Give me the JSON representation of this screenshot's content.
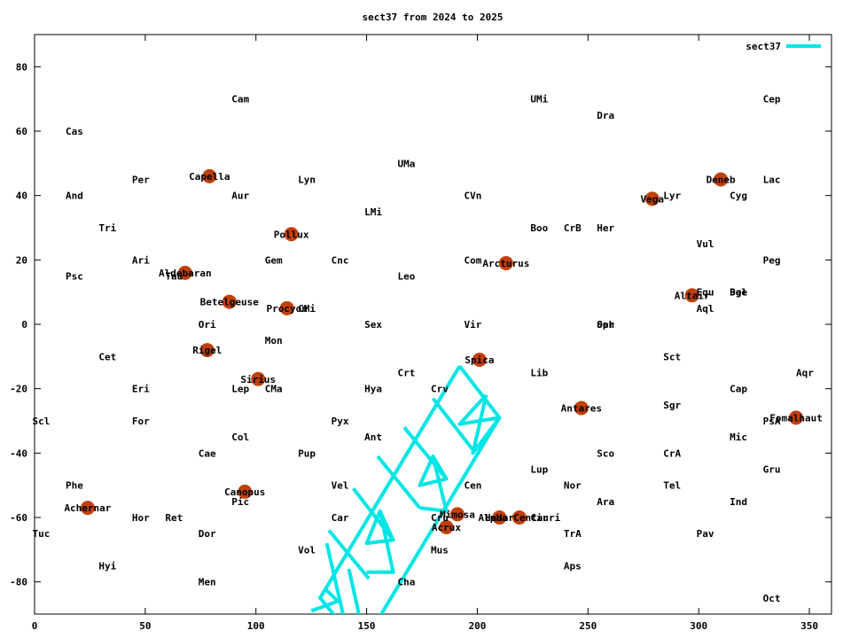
{
  "chart_data": {
    "type": "scatter",
    "title": "sect37 from 2024 to 2025",
    "xlabel": "",
    "ylabel": "",
    "xlim": [
      0,
      360
    ],
    "ylim": [
      -90,
      90
    ],
    "xticks": [
      0,
      50,
      100,
      150,
      200,
      250,
      300,
      350
    ],
    "yticks": [
      -80,
      -60,
      -40,
      -20,
      0,
      20,
      40,
      60,
      80
    ],
    "grid": false,
    "legend": {
      "position": "top-right",
      "entries": [
        {
          "name": "sect37",
          "color": "#00e5e5"
        }
      ]
    },
    "colors": {
      "star": "#c0400a",
      "sector": "#00e5e5",
      "axis": "#000000"
    },
    "constellations": [
      {
        "name": "Cam",
        "x": 89,
        "y": 70
      },
      {
        "name": "UMi",
        "x": 224,
        "y": 70
      },
      {
        "name": "Cep",
        "x": 329,
        "y": 70
      },
      {
        "name": "Dra",
        "x": 254,
        "y": 65
      },
      {
        "name": "Cas",
        "x": 14,
        "y": 60
      },
      {
        "name": "UMa",
        "x": 164,
        "y": 50
      },
      {
        "name": "Per",
        "x": 44,
        "y": 45
      },
      {
        "name": "Lyn",
        "x": 119,
        "y": 45
      },
      {
        "name": "Lac",
        "x": 329,
        "y": 45
      },
      {
        "name": "And",
        "x": 14,
        "y": 40
      },
      {
        "name": "Aur",
        "x": 89,
        "y": 40
      },
      {
        "name": "CVn",
        "x": 194,
        "y": 40
      },
      {
        "name": "Lyr",
        "x": 284,
        "y": 40
      },
      {
        "name": "Cyg",
        "x": 314,
        "y": 40
      },
      {
        "name": "LMi",
        "x": 149,
        "y": 35
      },
      {
        "name": "Tri",
        "x": 29,
        "y": 30
      },
      {
        "name": "Boo",
        "x": 224,
        "y": 30
      },
      {
        "name": "CrB",
        "x": 239,
        "y": 30
      },
      {
        "name": "Her",
        "x": 254,
        "y": 30
      },
      {
        "name": "Vul",
        "x": 299,
        "y": 25
      },
      {
        "name": "Ari",
        "x": 44,
        "y": 20
      },
      {
        "name": "Gem",
        "x": 104,
        "y": 20
      },
      {
        "name": "Cnc",
        "x": 134,
        "y": 20
      },
      {
        "name": "Com",
        "x": 194,
        "y": 20
      },
      {
        "name": "Peg",
        "x": 329,
        "y": 20
      },
      {
        "name": "Psc",
        "x": 14,
        "y": 15
      },
      {
        "name": "Tau",
        "x": 59,
        "y": 15
      },
      {
        "name": "Leo",
        "x": 164,
        "y": 15
      },
      {
        "name": "Sge",
        "x": 314,
        "y": 10
      },
      {
        "name": "Del",
        "x": 314,
        "y": 10
      },
      {
        "name": "Equ",
        "x": 299,
        "y": 10
      },
      {
        "name": "CMi",
        "x": 119,
        "y": 5
      },
      {
        "name": "Aql",
        "x": 299,
        "y": 5
      },
      {
        "name": "Ori",
        "x": 74,
        "y": 0
      },
      {
        "name": "Sex",
        "x": 149,
        "y": 0
      },
      {
        "name": "Vir",
        "x": 194,
        "y": 0
      },
      {
        "name": "Oph",
        "x": 254,
        "y": 0
      },
      {
        "name": "Ser",
        "x": 254,
        "y": 0
      },
      {
        "name": "Mon",
        "x": 104,
        "y": -5
      },
      {
        "name": "Cet",
        "x": 29,
        "y": -10
      },
      {
        "name": "Sct",
        "x": 284,
        "y": -10
      },
      {
        "name": "Crt",
        "x": 164,
        "y": -15
      },
      {
        "name": "Lib",
        "x": 224,
        "y": -15
      },
      {
        "name": "Aqr",
        "x": 344,
        "y": -15
      },
      {
        "name": "Eri",
        "x": 44,
        "y": -20
      },
      {
        "name": "Lep",
        "x": 89,
        "y": -20
      },
      {
        "name": "CMa",
        "x": 104,
        "y": -20
      },
      {
        "name": "Hya",
        "x": 149,
        "y": -20
      },
      {
        "name": "Crv",
        "x": 179,
        "y": -20
      },
      {
        "name": "Cap",
        "x": 314,
        "y": -20
      },
      {
        "name": "Sgr",
        "x": 284,
        "y": -25
      },
      {
        "name": "Scl",
        "x": -1,
        "y": -30
      },
      {
        "name": "For",
        "x": 44,
        "y": -30
      },
      {
        "name": "Pyx",
        "x": 134,
        "y": -30
      },
      {
        "name": "PsA",
        "x": 329,
        "y": -30
      },
      {
        "name": "Col",
        "x": 89,
        "y": -35
      },
      {
        "name": "Ant",
        "x": 149,
        "y": -35
      },
      {
        "name": "Mic",
        "x": 314,
        "y": -35
      },
      {
        "name": "Cae",
        "x": 74,
        "y": -40
      },
      {
        "name": "Pup",
        "x": 119,
        "y": -40
      },
      {
        "name": "Sco",
        "x": 254,
        "y": -40
      },
      {
        "name": "CrA",
        "x": 284,
        "y": -40
      },
      {
        "name": "Lup",
        "x": 224,
        "y": -45
      },
      {
        "name": "Gru",
        "x": 329,
        "y": -45
      },
      {
        "name": "Phe",
        "x": 14,
        "y": -50
      },
      {
        "name": "Vel",
        "x": 134,
        "y": -50
      },
      {
        "name": "Cen",
        "x": 194,
        "y": -50
      },
      {
        "name": "Nor",
        "x": 239,
        "y": -50
      },
      {
        "name": "Tel",
        "x": 284,
        "y": -50
      },
      {
        "name": "Pic",
        "x": 89,
        "y": -55
      },
      {
        "name": "Ara",
        "x": 254,
        "y": -55
      },
      {
        "name": "Ind",
        "x": 314,
        "y": -55
      },
      {
        "name": "Hor",
        "x": 44,
        "y": -60
      },
      {
        "name": "Ret",
        "x": 59,
        "y": -60
      },
      {
        "name": "Car",
        "x": 134,
        "y": -60
      },
      {
        "name": "Cru",
        "x": 179,
        "y": -60
      },
      {
        "name": "Cir",
        "x": 224,
        "y": -60
      },
      {
        "name": "Tuc",
        "x": -1,
        "y": -65
      },
      {
        "name": "Dor",
        "x": 74,
        "y": -65
      },
      {
        "name": "TrA",
        "x": 239,
        "y": -65
      },
      {
        "name": "Pav",
        "x": 299,
        "y": -65
      },
      {
        "name": "Vol",
        "x": 119,
        "y": -70
      },
      {
        "name": "Mus",
        "x": 179,
        "y": -70
      },
      {
        "name": "Hyi",
        "x": 29,
        "y": -75
      },
      {
        "name": "Aps",
        "x": 239,
        "y": -75
      },
      {
        "name": "Men",
        "x": 74,
        "y": -80
      },
      {
        "name": "Cha",
        "x": 164,
        "y": -80
      },
      {
        "name": "Oct",
        "x": 329,
        "y": -85
      }
    ],
    "stars": [
      {
        "name": "Capella",
        "x": 79,
        "y": 46
      },
      {
        "name": "Deneb",
        "x": 310,
        "y": 45
      },
      {
        "name": "Vega",
        "x": 279,
        "y": 39
      },
      {
        "name": "Pollux",
        "x": 116,
        "y": 28
      },
      {
        "name": "Arcturus",
        "x": 213,
        "y": 19
      },
      {
        "name": "Aldebaran",
        "x": 68,
        "y": 16
      },
      {
        "name": "Altair",
        "x": 297,
        "y": 9
      },
      {
        "name": "Betelgeuse",
        "x": 88,
        "y": 7
      },
      {
        "name": "Procyon",
        "x": 114,
        "y": 5
      },
      {
        "name": "Rigel",
        "x": 78,
        "y": -8
      },
      {
        "name": "Spica",
        "x": 201,
        "y": -11
      },
      {
        "name": "Sirius",
        "x": 101,
        "y": -17
      },
      {
        "name": "Antares",
        "x": 247,
        "y": -26
      },
      {
        "name": "Fomalhaut",
        "x": 344,
        "y": -29
      },
      {
        "name": "Canopus",
        "x": 95,
        "y": -52
      },
      {
        "name": "Achernar",
        "x": 24,
        "y": -57
      },
      {
        "name": "Mimosa",
        "x": 191,
        "y": -59
      },
      {
        "name": "Hadar",
        "x": 210,
        "y": -60
      },
      {
        "name": "Alpha Centauri",
        "x": 219,
        "y": -60
      },
      {
        "name": "Acrux",
        "x": 186,
        "y": -63
      }
    ],
    "series": [
      {
        "name": "sect37",
        "segments": [
          [
            [
              192,
              -13
            ],
            [
              210,
              -29
            ]
          ],
          [
            [
              192,
              -13
            ],
            [
              129,
              -85
            ],
            [
              141,
              -95
            ]
          ],
          [
            [
              210,
              -29
            ],
            [
              147,
              -101
            ]
          ],
          [
            [
              180,
              -23
            ],
            [
              198,
              -39
            ]
          ],
          [
            [
              167,
              -32
            ],
            [
              186,
              -48
            ]
          ],
          [
            [
              155,
              -41
            ],
            [
              174,
              -57
            ]
          ],
          [
            [
              144,
              -51
            ],
            [
              162,
              -67
            ]
          ],
          [
            [
              133,
              -64
            ],
            [
              151,
              -79
            ]
          ],
          [
            [
              132,
              -68
            ],
            [
              141,
              -95
            ]
          ],
          [
            [
              142,
              -76
            ],
            [
              151,
              -104
            ]
          ],
          [
            [
              204,
              -22
            ],
            [
              198,
              -40
            ],
            [
              210,
              -29
            ],
            [
              192,
              -31
            ],
            [
              204,
              -22
            ]
          ],
          [
            [
              180,
              -41
            ],
            [
              186,
              -48
            ],
            [
              174,
              -50
            ],
            [
              180,
              -41
            ],
            [
              186,
              -58
            ],
            [
              174,
              -57
            ]
          ],
          [
            [
              156,
              -58
            ],
            [
              162,
              -67
            ],
            [
              150,
              -68
            ],
            [
              156,
              -58
            ],
            [
              162,
              -77
            ],
            [
              150,
              -77
            ]
          ],
          [
            [
              131,
              -82
            ],
            [
              137,
              -86
            ],
            [
              125,
              -89
            ]
          ]
        ]
      }
    ]
  }
}
